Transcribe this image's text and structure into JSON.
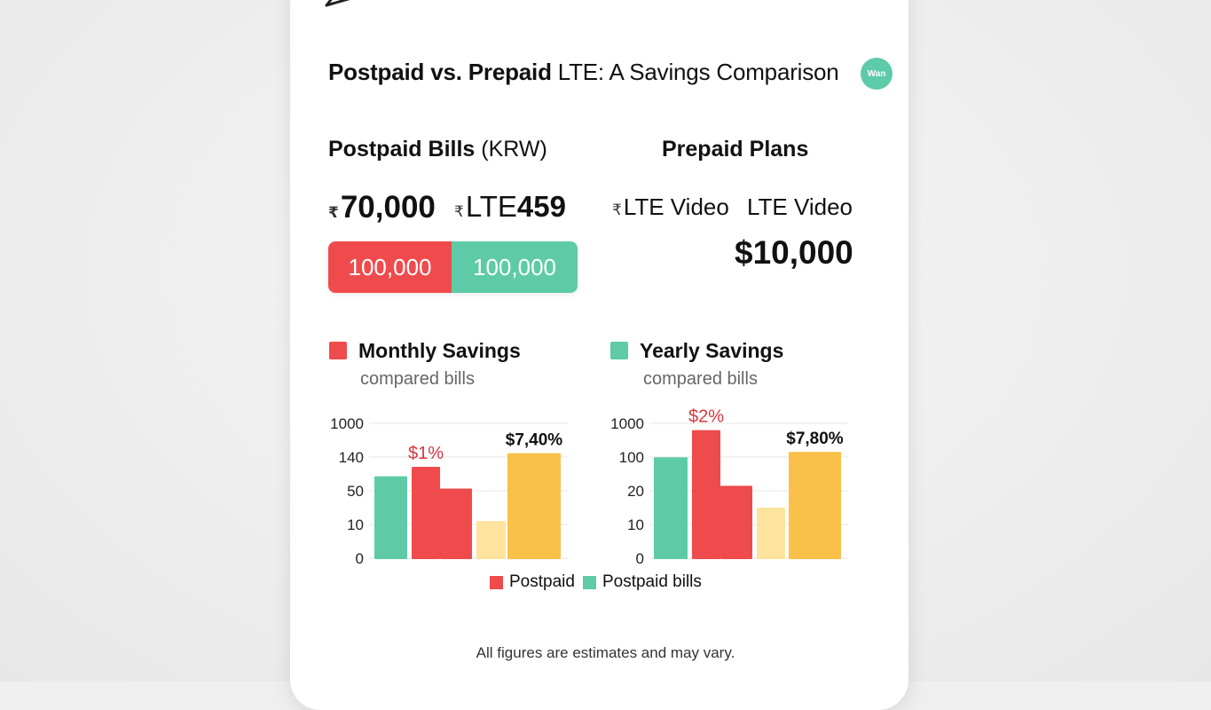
{
  "header": {
    "title_bold": "Postpaid vs. Prepaid",
    "title_rest": " LTE: A Savings Comparison",
    "logo_text": "Wan"
  },
  "postpaid": {
    "heading_bold": "Postpaid Bills",
    "heading_rest": " (KRW)",
    "currency_symbol": "₹",
    "amount_1": "70,000",
    "amount_2_label": "LTE ",
    "amount_2_value": "459",
    "bar_left": "100,000",
    "bar_right": "100,000"
  },
  "prepaid": {
    "heading": "Prepaid Plans",
    "item_1_symbol": "₹",
    "item_1": "LTE Video",
    "item_2": "LTE Video",
    "big_amount": "$10,000"
  },
  "legend": {
    "monthly_title": "Monthly Savings",
    "monthly_sub": "compared bills",
    "yearly_title": "Yearly Savings",
    "yearly_sub": "compared bills",
    "series_1": "Postpaid",
    "series_2": "Postpaid bills"
  },
  "colors": {
    "red": "#ef4b4d",
    "green": "#5ecba6",
    "light_yellow": "#fde39e",
    "yellow": "#f9c04a"
  },
  "chart_data": [
    {
      "type": "bar",
      "title": "Monthly Savings",
      "y_ticks": [
        "1000",
        "140",
        "50",
        "10",
        "0"
      ],
      "bars": [
        {
          "color": "#5ecba6",
          "value": 0.61
        },
        {
          "color": "#ef4b4d",
          "value": 0.68,
          "label": "$1%"
        },
        {
          "color": "#ef4b4d",
          "value": 0.52
        },
        {
          "color": "#fde39e",
          "value": 0.28
        },
        {
          "color": "#f9c04a",
          "value": 0.78,
          "label": "$7,40%"
        }
      ]
    },
    {
      "type": "bar",
      "title": "Yearly Savings",
      "y_ticks": [
        "1000",
        "100",
        "20",
        "10",
        "0"
      ],
      "bars": [
        {
          "color": "#5ecba6",
          "value": 0.75
        },
        {
          "color": "#ef4b4d",
          "value": 0.95,
          "label": "$2%"
        },
        {
          "color": "#ef4b4d",
          "value": 0.54
        },
        {
          "color": "#fde39e",
          "value": 0.38
        },
        {
          "color": "#f9c04a",
          "value": 0.79,
          "label": "$7,80%"
        }
      ]
    }
  ],
  "footer": {
    "note": "All figures are estimates and may vary."
  }
}
